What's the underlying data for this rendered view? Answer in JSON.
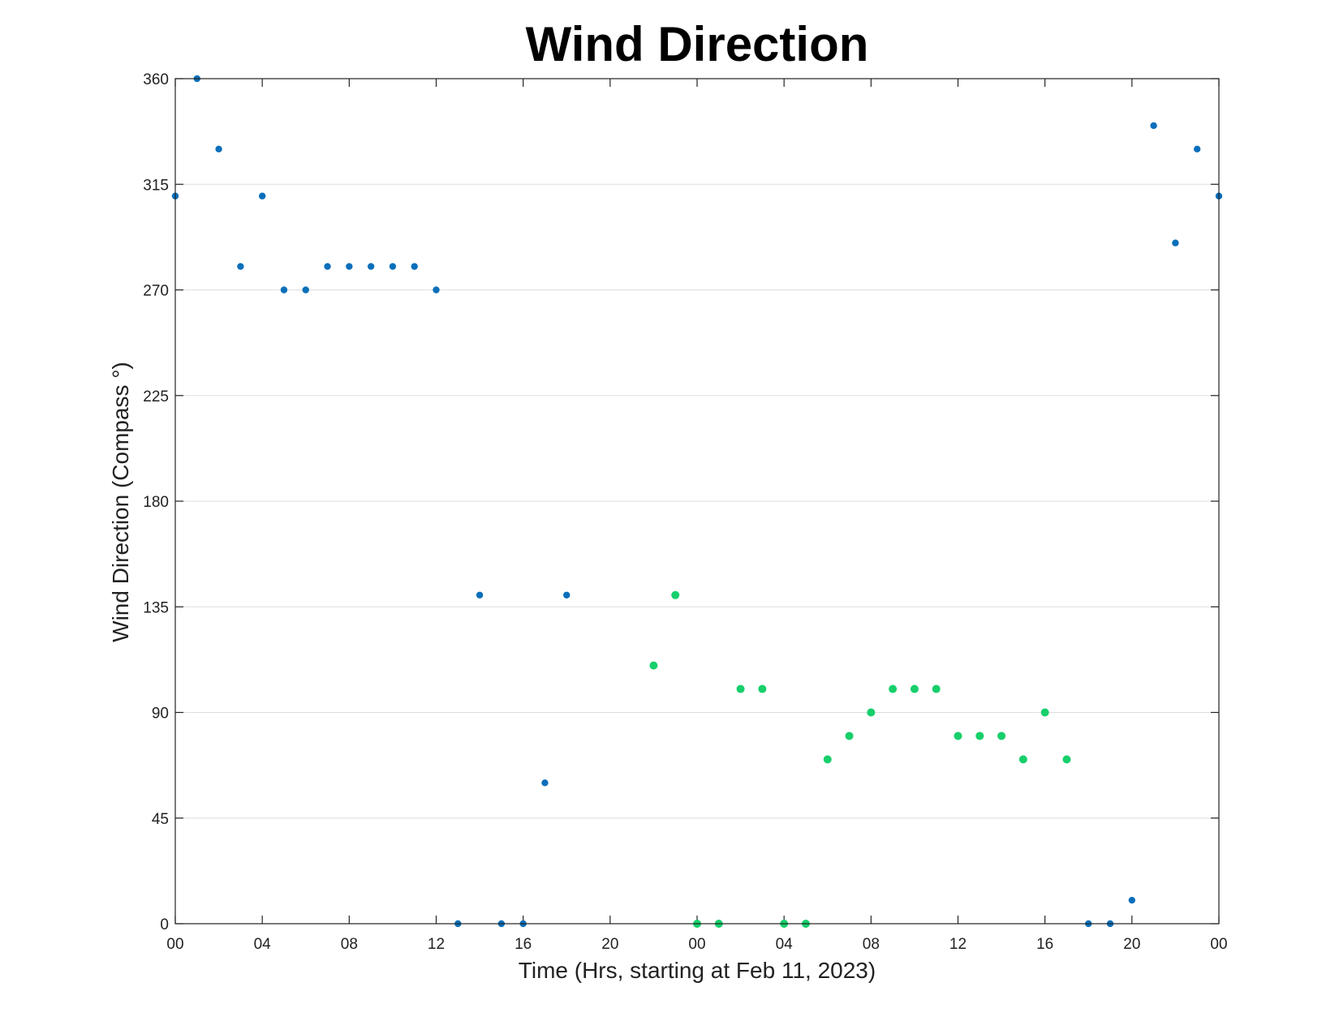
{
  "chart_data": {
    "type": "scatter",
    "title": "Wind Direction",
    "xlabel": "Time (Hrs, starting at Feb 11, 2023)",
    "ylabel": "Wind Direction (Compass °)",
    "xlim": [
      0,
      48
    ],
    "ylim": [
      0,
      360
    ],
    "x_ticks": [
      0,
      4,
      8,
      12,
      16,
      20,
      24,
      28,
      32,
      36,
      40,
      44,
      48
    ],
    "x_tick_labels": [
      "00",
      "04",
      "08",
      "12",
      "16",
      "20",
      "00",
      "04",
      "08",
      "12",
      "16",
      "20",
      "00"
    ],
    "y_ticks": [
      0,
      45,
      90,
      135,
      180,
      225,
      270,
      315,
      360
    ],
    "y_tick_labels": [
      "0",
      "45",
      "90",
      "135",
      "180",
      "225",
      "270",
      "315",
      "360"
    ],
    "grid": "horizontal",
    "legend": "none",
    "series": [
      {
        "color": "#0a6fba",
        "points": [
          [
            0,
            310
          ],
          [
            1,
            360
          ],
          [
            2,
            330
          ],
          [
            3,
            280
          ],
          [
            4,
            310
          ],
          [
            5,
            270
          ],
          [
            6,
            270
          ],
          [
            7,
            280
          ],
          [
            8,
            280
          ],
          [
            9,
            280
          ],
          [
            10,
            280
          ],
          [
            11,
            280
          ],
          [
            12,
            270
          ],
          [
            13,
            0
          ],
          [
            14,
            140
          ],
          [
            15,
            0
          ],
          [
            16,
            0
          ],
          [
            17,
            60
          ],
          [
            18,
            140
          ],
          [
            42,
            0
          ],
          [
            43,
            0
          ],
          [
            44,
            10
          ],
          [
            45,
            340
          ],
          [
            46,
            290
          ],
          [
            47,
            330
          ],
          [
            48,
            310
          ]
        ]
      },
      {
        "color": "#17cf6b",
        "points": [
          [
            22,
            110
          ],
          [
            23,
            140
          ],
          [
            24,
            0
          ],
          [
            25,
            0
          ],
          [
            26,
            100
          ],
          [
            27,
            100
          ],
          [
            28,
            0
          ],
          [
            29,
            0
          ],
          [
            30,
            70
          ],
          [
            31,
            80
          ],
          [
            32,
            90
          ],
          [
            33,
            100
          ],
          [
            34,
            100
          ],
          [
            35,
            100
          ],
          [
            36,
            80
          ],
          [
            37,
            80
          ],
          [
            38,
            80
          ],
          [
            39,
            70
          ],
          [
            40,
            90
          ],
          [
            41,
            70
          ]
        ]
      }
    ]
  }
}
